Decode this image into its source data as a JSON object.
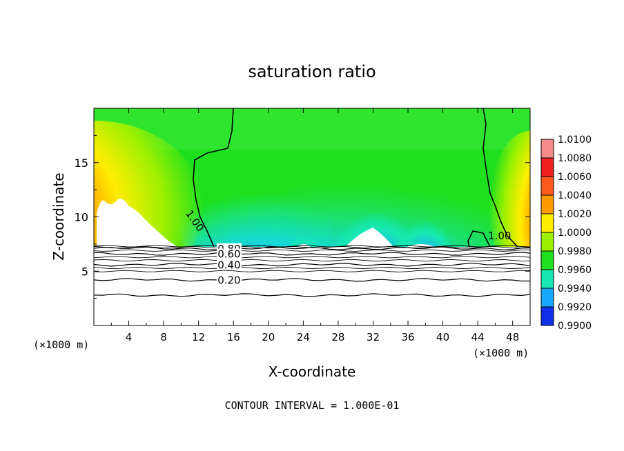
{
  "chart_data": {
    "type": "contour",
    "title": "saturation ratio",
    "xlabel": "X-coordinate",
    "ylabel": "Z-coordinate",
    "x_unit_label": "(×1000 m)",
    "x_unit_label_right": "(×1000 m)",
    "xlim": [
      0,
      50
    ],
    "ylim": [
      0,
      20
    ],
    "x_ticks": [
      4,
      8,
      12,
      16,
      20,
      24,
      28,
      32,
      36,
      40,
      44,
      48
    ],
    "y_ticks": [
      5,
      10,
      15
    ],
    "footer": "CONTOUR INTERVAL = 1.000E-01",
    "colorbar": {
      "ticks": [
        "1.0100",
        "1.0080",
        "1.0060",
        "1.0040",
        "1.0020",
        "1.0000",
        "0.9980",
        "0.9960",
        "0.9940",
        "0.9920",
        "0.9900"
      ],
      "colors": [
        "#f58a8a",
        "#ee2020",
        "#ff5a1e",
        "#ff9a00",
        "#ffee00",
        "#9cf000",
        "#1ee01e",
        "#16e8b0",
        "#1aa8ff",
        "#1030e8",
        "#7a10b0"
      ]
    },
    "contour_labels": [
      {
        "text": "0.80",
        "x": 15.5,
        "y": 7.0
      },
      {
        "text": "0.60",
        "x": 15.5,
        "y": 6.5
      },
      {
        "text": "0.40",
        "x": 15.5,
        "y": 5.5
      },
      {
        "text": "0.20",
        "x": 15.5,
        "y": 4.1
      },
      {
        "text": "1.00",
        "x": 11.5,
        "y": 9.6
      },
      {
        "text": "1.00",
        "x": 46.5,
        "y": 8.2
      }
    ],
    "contour_lines_below": [
      {
        "level": 0.8,
        "z": 7.1
      },
      {
        "level": 0.6,
        "z": 6.6
      },
      {
        "level": 0.4,
        "z": 5.6
      },
      {
        "level": 0.2,
        "z": 4.2
      },
      {
        "level": 0.1,
        "z": 2.8
      }
    ],
    "subsaturated_top_z": 7.2
  }
}
